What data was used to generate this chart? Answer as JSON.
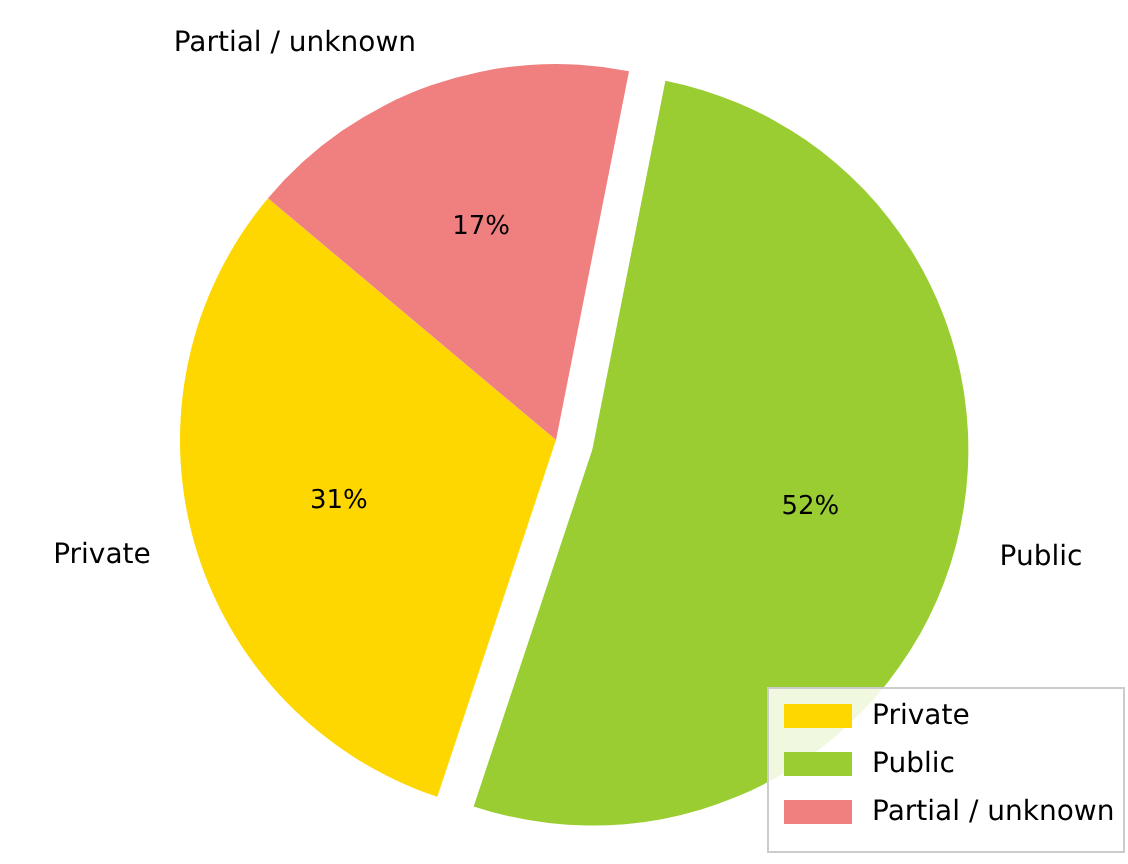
{
  "chart_data": {
    "type": "pie",
    "categories": [
      "Private",
      "Public",
      "Partial / unknown"
    ],
    "values": [
      31,
      52,
      17
    ],
    "colors": [
      "#ffd700",
      "#9acd32",
      "#f08080"
    ],
    "value_labels": [
      "31%",
      "52%",
      "17%"
    ],
    "legend": "bottom right"
  }
}
